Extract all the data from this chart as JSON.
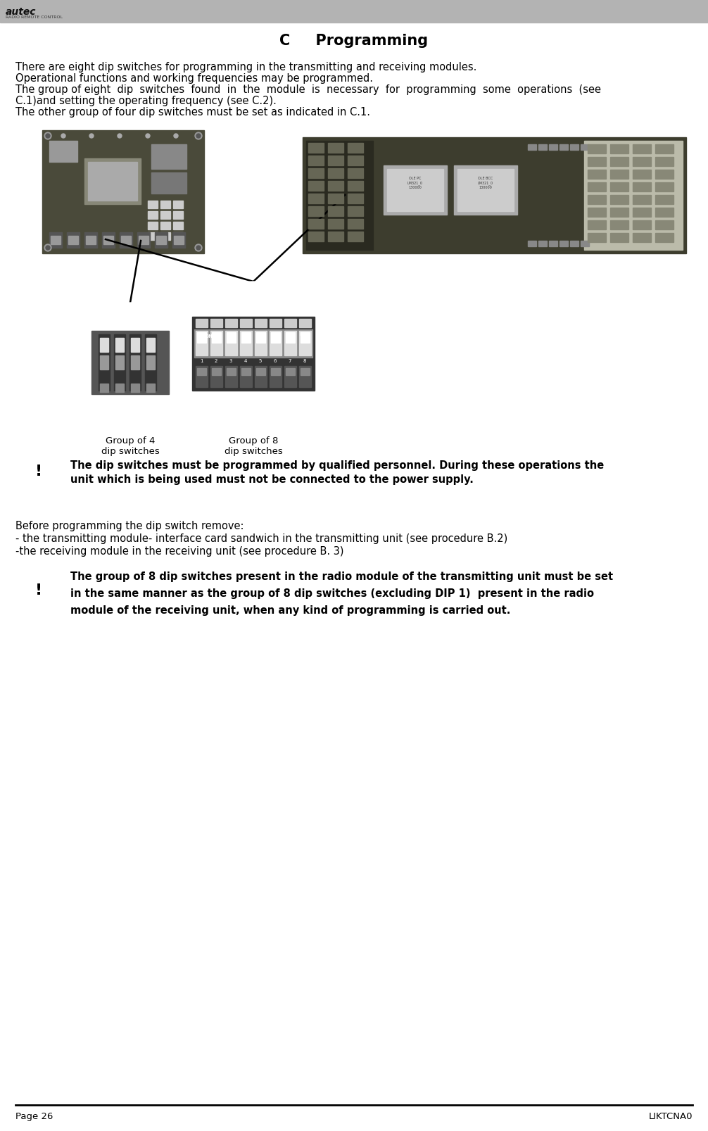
{
  "title": "C     Programming",
  "header_bar_color": "#b3b3b3",
  "background_color": "#ffffff",
  "text_color": "#000000",
  "intro_lines": [
    "There are eight dip switches for programming in the transmitting and receiving modules.",
    "Operational functions and working frequencies may be programmed.",
    "The group of eight  dip  switches  found  in  the  module  is  necessary  for  programming  some  operations  (see",
    "C.1)and setting the operating frequency (see C.2).",
    "The other group of four dip switches must be set as indicated in C.1."
  ],
  "warn1_line1": "The dip switches must be programmed by qualified personnel. During these operations the",
  "warn1_line2": "unit which is being used must not be connected to the power supply.",
  "before_lines": [
    "Before programming the dip switch remove:",
    "- the transmitting module- interface card sandwich in the transmitting unit (see procedure B.2)",
    "-the receiving module in the receiving unit (see procedure B. 3)"
  ],
  "warn2_line1": "The group of 8 dip switches present in the radio module of the transmitting unit must be set",
  "warn2_line2": "in the same manner as the group of 8 dip switches (excluding DIP 1)  present in the radio",
  "warn2_line3": "module of the receiving unit, when any kind of programming is carried out.",
  "label_group4": "Group of 4",
  "label_group4b": "dip switches",
  "label_group8": "Group of 8",
  "label_group8b": "dip switches",
  "footer_left": "Page 26",
  "footer_right": "LIKTCNA0",
  "title_fontsize": 15,
  "body_fontsize": 10.5,
  "warn_fontsize": 10.5,
  "small_fontsize": 9.5
}
